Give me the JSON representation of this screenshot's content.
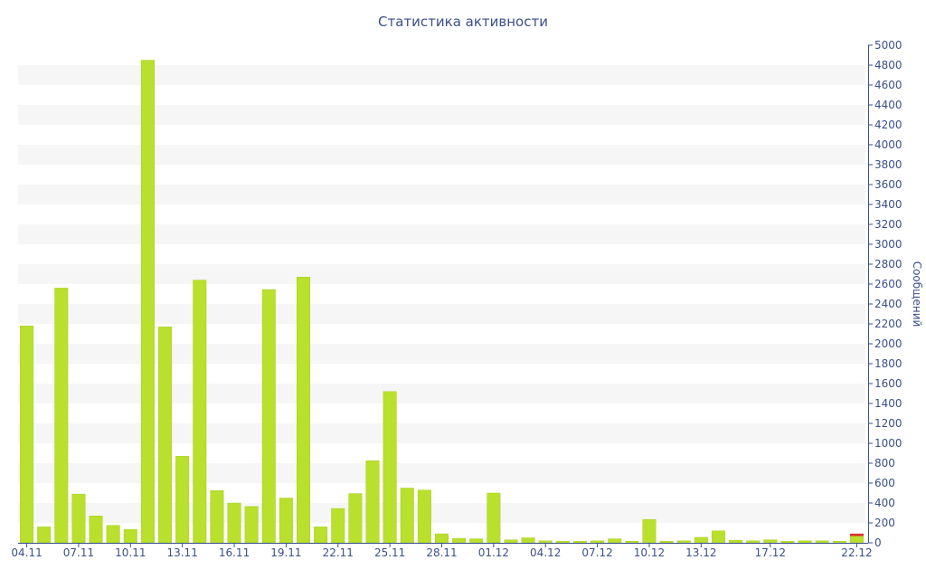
{
  "chart_data": {
    "type": "bar",
    "title": "Статистика активности",
    "xlabel": "",
    "ylabel": "Сообщений",
    "ylim": [
      0,
      5000
    ],
    "yticks": [
      0,
      200,
      400,
      600,
      800,
      1000,
      1200,
      1400,
      1600,
      1800,
      2000,
      2200,
      2400,
      2600,
      2800,
      3000,
      3200,
      3400,
      3600,
      3800,
      4000,
      4200,
      4400,
      4600,
      4800,
      5000
    ],
    "grid": true,
    "legend": "none",
    "y_axis_side": "right",
    "bar_color": "#b8e02c",
    "bar_stroke": "#a9cf25",
    "grid_band_color": "#f6f6f6",
    "axis_color": "#3a4f8c",
    "secondary_color": "#d9302a",
    "categories": [
      "04.11",
      "05.11",
      "06.11",
      "07.11",
      "08.11",
      "09.11",
      "10.11",
      "11.11",
      "12.11",
      "13.11",
      "14.11",
      "15.11",
      "16.11",
      "17.11",
      "18.11",
      "19.11",
      "20.11",
      "21.11",
      "22.11",
      "23.11",
      "24.11",
      "25.11",
      "26.11",
      "27.11",
      "28.11",
      "29.11",
      "30.11",
      "01.12",
      "02.12",
      "03.12",
      "04.12",
      "05.12",
      "06.12",
      "07.12",
      "08.12",
      "09.12",
      "10.12",
      "11.12",
      "12.12",
      "13.12",
      "14.12",
      "15.12",
      "16.12",
      "17.12",
      "18.12",
      "19.12",
      "20.12",
      "21.12",
      "22.12"
    ],
    "x_tick_labels": [
      "04.11",
      "07.11",
      "10.11",
      "13.11",
      "16.11",
      "19.11",
      "22.11",
      "25.11",
      "28.11",
      "01.12",
      "04.12",
      "07.12",
      "10.12",
      "13.12",
      "17.12",
      "22.12"
    ],
    "series": [
      {
        "values": [
          2180,
          160,
          2560,
          490,
          270,
          175,
          135,
          4850,
          2170,
          870,
          2640,
          525,
          400,
          365,
          2545,
          450,
          2670,
          160,
          345,
          495,
          825,
          1520,
          550,
          530,
          90,
          45,
          40,
          500,
          30,
          50,
          20,
          15,
          15,
          20,
          40,
          15,
          235,
          15,
          20,
          55,
          120,
          25,
          20,
          30,
          15,
          20,
          20,
          15,
          70
        ]
      },
      {
        "values": [
          0,
          0,
          0,
          0,
          0,
          0,
          0,
          0,
          0,
          0,
          0,
          0,
          0,
          0,
          0,
          0,
          0,
          0,
          0,
          0,
          0,
          0,
          0,
          0,
          0,
          0,
          0,
          0,
          0,
          0,
          0,
          0,
          0,
          0,
          0,
          0,
          0,
          0,
          0,
          0,
          0,
          0,
          0,
          0,
          0,
          0,
          0,
          0,
          20
        ]
      }
    ]
  }
}
